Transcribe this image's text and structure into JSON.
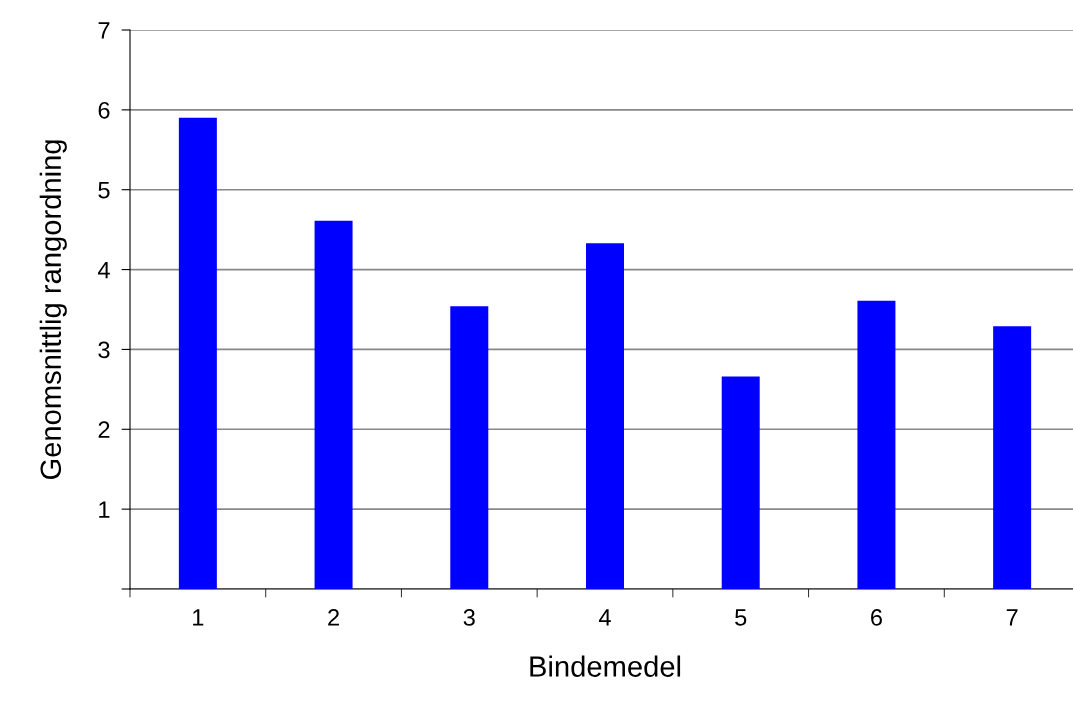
{
  "chart_data": {
    "type": "bar",
    "xlabel": "Bindemedel",
    "ylabel": "Genomsnittlig rangordning",
    "categories": [
      "1",
      "2",
      "3",
      "4",
      "5",
      "6",
      "7"
    ],
    "values": [
      5.9,
      4.61,
      3.54,
      4.33,
      2.66,
      3.61,
      3.29
    ],
    "color": "#0000ff",
    "ylim": [
      0,
      7
    ],
    "yticks": [
      {
        "value": 0,
        "label": null
      },
      1,
      2,
      3,
      4,
      5,
      6,
      7
    ],
    "grid": "y",
    "legend": false
  }
}
